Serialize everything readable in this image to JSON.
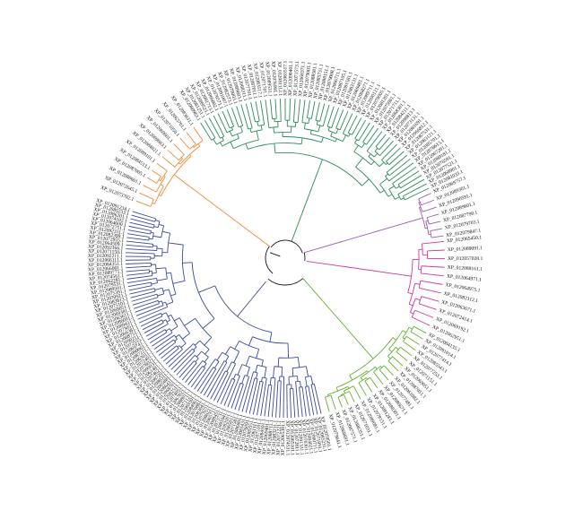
{
  "tree": {
    "clades": [
      {
        "id": "orange",
        "color": "#f08a3c",
        "leaves": [
          "XP_012073702.1",
          "XP_012072645.1",
          "XP_012088601.1",
          "XP_012087005.1",
          "XP_012084513.1",
          "XP_012089101.1",
          "XP_012084821.1",
          "XP_012069663.1",
          "XP_012069601.1",
          "XP_012071050.1",
          "XP_012065701.1",
          "XP_012083631.1"
        ]
      },
      {
        "id": "green-top",
        "color": "#2e8b57",
        "leaves": [
          "XP_012080963.1",
          "XP_012081251.1",
          "XP_012089523.1",
          "XP_012081713.1",
          "XP_012066002.1",
          "XP_012076571.1",
          "XP_012091007.1",
          "XP_012082573.1",
          "XP_012079003.1",
          "XP_012089603.1",
          "XP_012068311.1",
          "XP_012077701.1",
          "XP_012087011.1",
          "XP_012083517.1",
          "XP_012071701.1",
          "XP_012089531.1",
          "XP_012076991.1",
          "XP_012081112.1",
          "XP_012083517.1",
          "XP_012090401.1",
          "XP_012071573.1",
          "XP_012068371.1",
          "XP_012079003.1",
          "XP_012088581.1",
          "XP_012085731.1",
          "XP_012088151.1",
          "XP_012079008.1",
          "XP_012066711.1",
          "XP_012087105.1",
          "XP_012081581.1",
          "XP_012083131.1",
          "XP_012069481.1",
          "XP_012068271.1",
          "XP_012089711.1",
          "XP_012090121.1",
          "XP_012079005.1",
          "XP_012081201.1",
          "XP_012075001.1",
          "XP_012071711.1",
          "XP_012068301.1",
          "XP_012084211.1",
          "XP_012090813.1",
          "XP_012073131.1",
          "XP_012081691.1",
          "XP_012066812.1",
          "XP_012087531.1",
          "XP_012083121.1",
          "XP_012085701.1",
          "XP_012078613.1",
          "XP_012067201.1",
          "XP_012089181.1",
          "XP_012076591.1",
          "XP_012077521.1",
          "XP_012068901.1",
          "XP_012081033.1"
        ]
      },
      {
        "id": "purple",
        "color": "#9b59b6",
        "leaves": [
          "XP_012069757.1",
          "XP_012089301.1",
          "XP_012090591.1",
          "XP_012089601.1",
          "XP_012087790.1",
          "XP_012079703.1",
          "XP_012079847.1"
        ]
      },
      {
        "id": "magenta",
        "color": "#d0399a",
        "leaves": [
          "XP_012065450.1",
          "XP_012089091.1",
          "XP_012057028.1",
          "XP_012088161.1",
          "XP_012064971.1",
          "XP_012064975.1",
          "XP_012082112.1",
          "XP_012063671.1",
          "XP_012072414.1",
          "XP_012069192.1",
          "XP_012062951.1"
        ]
      },
      {
        "id": "lightgreen",
        "color": "#66b032",
        "leaves": [
          "XP_012084135.1",
          "XP_012091014.1",
          "XP_012077414.1",
          "XP_012085543.1",
          "XP_012077253.1",
          "XP_012071151.1",
          "XP_012069051.1",
          "XP_012087051.1",
          "XP_012061082.1",
          "XP_012077481.1",
          "XP_012086671.1",
          "XP_012088301.1",
          "XP_012091281.1",
          "XP_012078151.1",
          "XP_012089081.1",
          "XP_012071031.1",
          "XP_012086351.1",
          "XP_012087571.1",
          "XP_012068691.1",
          "XP_012079641.1"
        ]
      },
      {
        "id": "blue",
        "color": "#3b4a9c",
        "leaves": [
          "XP_012078501.1",
          "XP_012085231.1",
          "XP_012071891.1",
          "XP_012090711.1",
          "XP_012084021.1",
          "XP_012070301.1",
          "XP_012091331.1",
          "XP_012072811.1",
          "XP_012085101.1",
          "XP_012074531.1",
          "XP_012065381.1",
          "XP_012072221.1",
          "XP_012083211.1",
          "XP_012088711.1",
          "XP_012069401.1",
          "XP_012084101.1",
          "XP_012075101.1",
          "XP_012061111.1",
          "XP_012085551.1",
          "XP_012076091.1",
          "XP_012081431.1",
          "XP_012086801.1",
          "XP_012071581.1",
          "XP_012065011.1",
          "XP_012082001.1",
          "XP_012091041.1",
          "XP_012073731.1",
          "XP_012088451.1",
          "XP_012065711.1",
          "XP_012086221.1",
          "XP_012079251.1",
          "XP_012083641.1",
          "XP_012070881.1",
          "XP_012084961.1",
          "XP_012069301.1",
          "XP_012071121.1",
          "XP_012088011.1",
          "XP_012067021.1",
          "XP_012074051.1",
          "XP_012082511.1",
          "XP_012068701.1",
          "XP_012086431.1",
          "XP_012065881.1",
          "XP_012080311.1",
          "XP_012087201.1",
          "XP_012074621.1",
          "XP_012061481.1",
          "XP_012090031.1",
          "XP_012078021.1",
          "XP_012072401.1",
          "XP_012063011.1",
          "XP_012087221.1",
          "XP_012080061.1",
          "XP_012069741.1",
          "XP_012072555.1",
          "XP_012090211.1",
          "XP_012088751.1",
          "XP_012066381.1",
          "XP_012073051.1",
          "XP_012089431.1",
          "XP_012086091.1",
          "XP_012063611.1",
          "XP_012069381.1",
          "XP_012069051.1",
          "XP_012075101.1",
          "XP_012083813.1",
          "XP_012070921.1",
          "XP_012075391.1",
          "XP_012089501.1",
          "XP_012079531.1",
          "XP_012062281.1",
          "XP_012074561.1",
          "XP_012089771.1",
          "XP_012066001.1",
          "XP_012084351.1",
          "XP_012066111.1",
          "XP_012092211.1",
          "XP_012071150.1",
          "XP_012092166.1",
          "XP_012064509.1",
          "XP_012072955.1",
          "XP_012082399.1",
          "XP_012092311.1",
          "XP_012072751.1",
          "XP_012064600.1",
          "XP_012074102.1",
          "XP_012086201.1",
          "XP_012085233.1",
          "XP_012091234.1"
        ]
      }
    ]
  }
}
